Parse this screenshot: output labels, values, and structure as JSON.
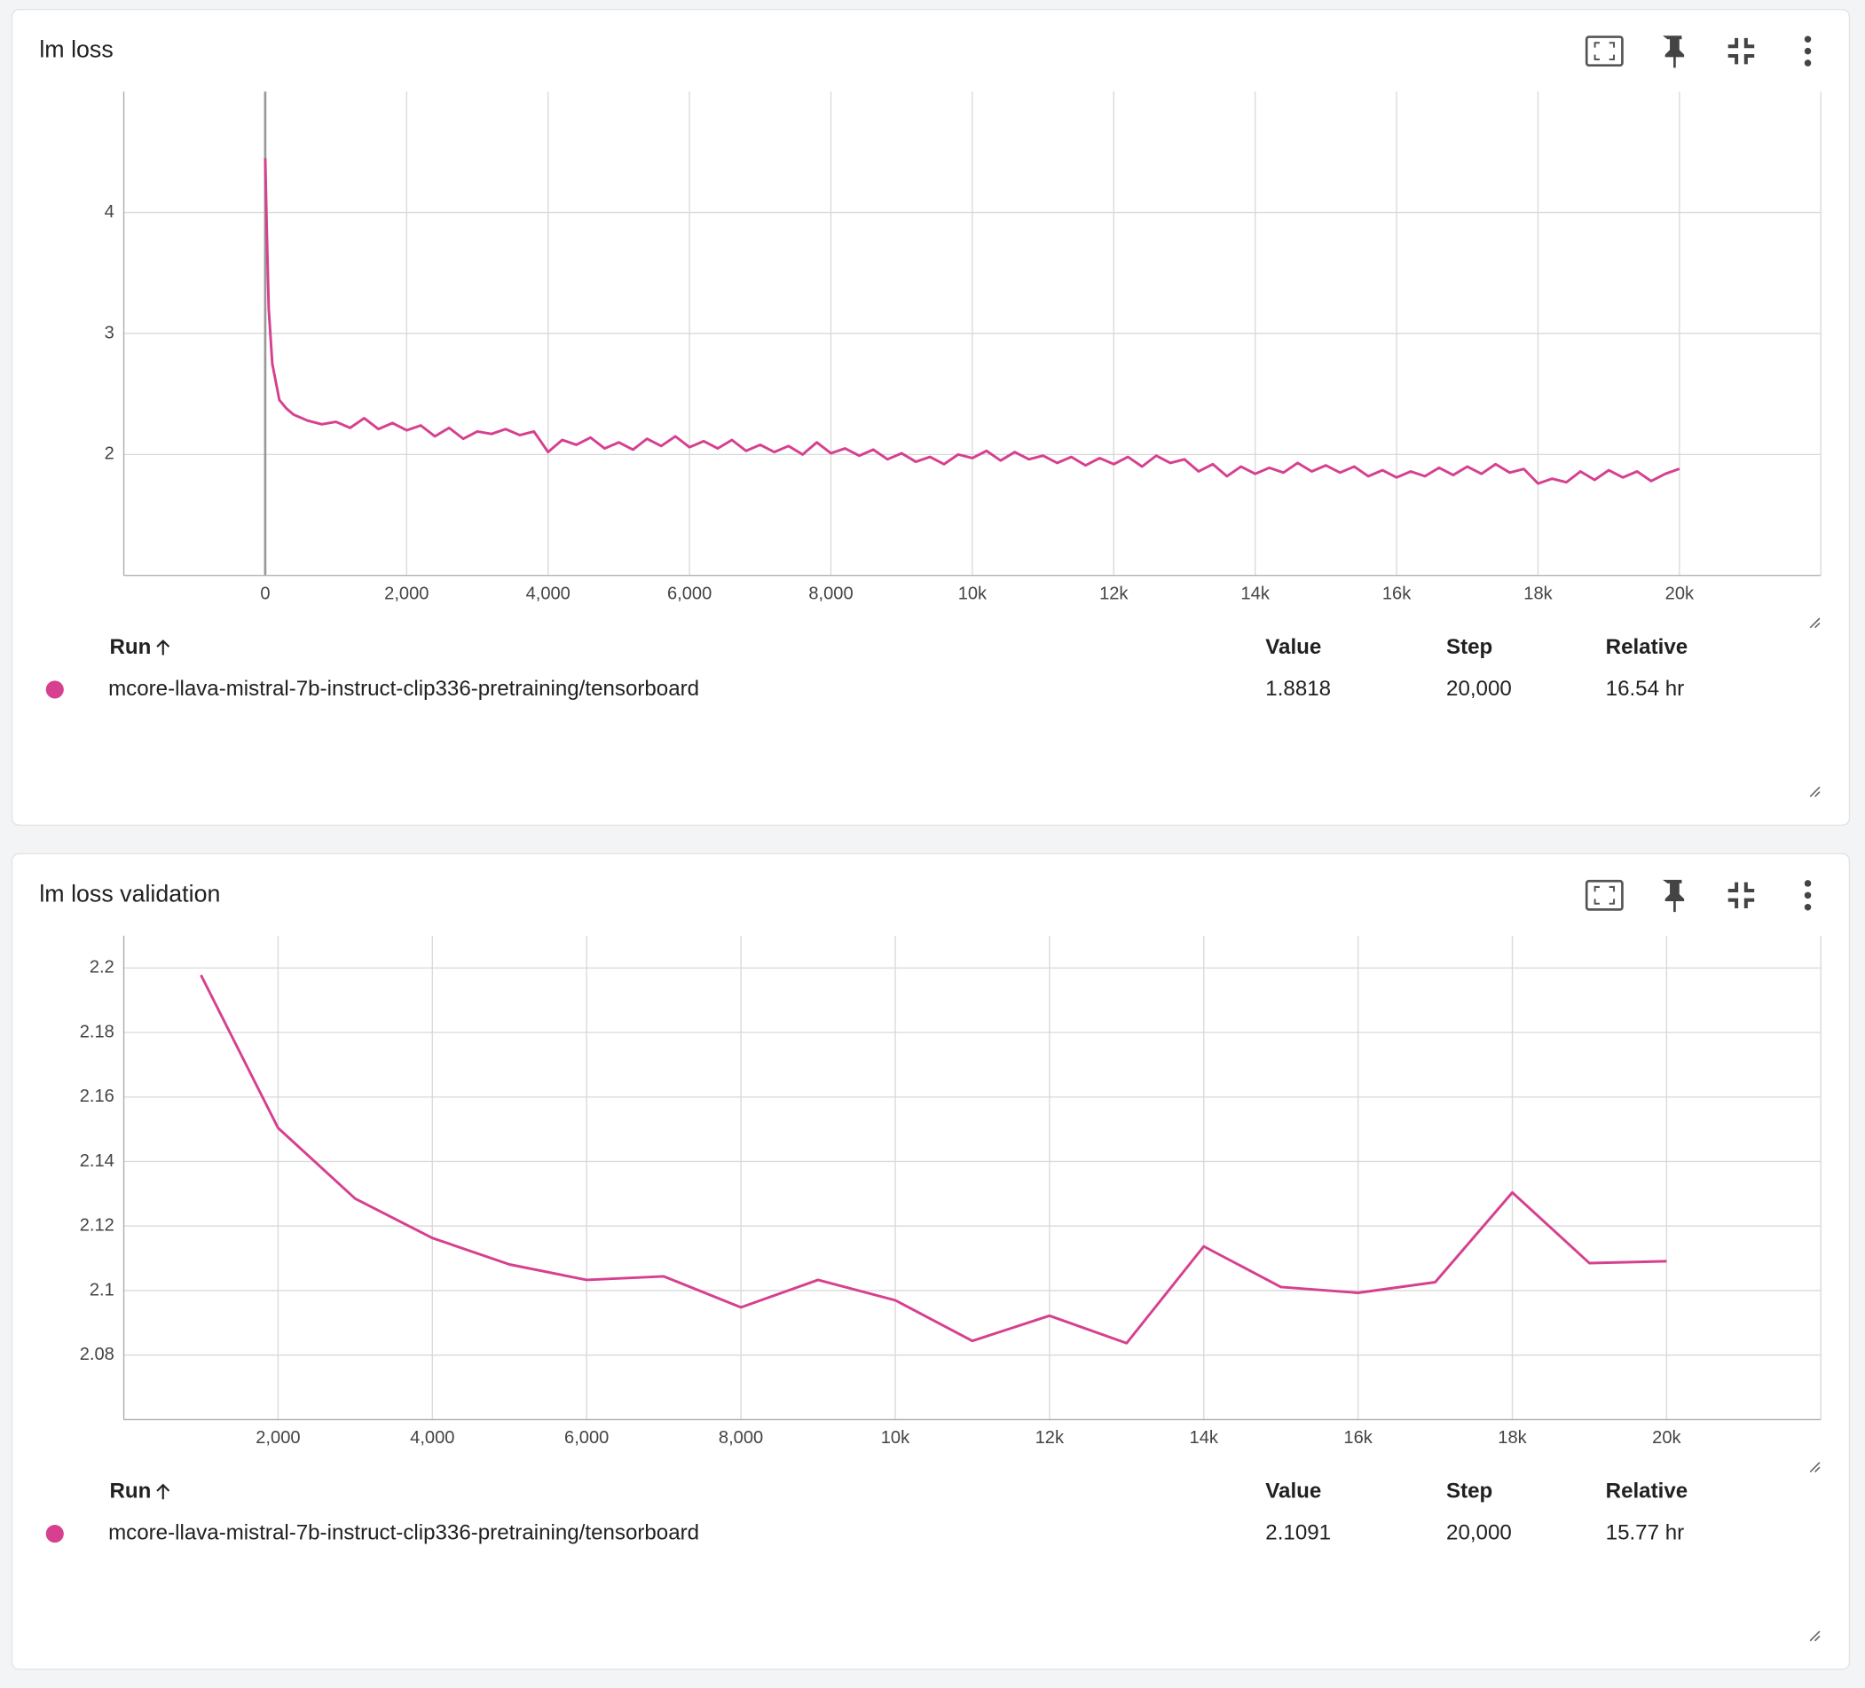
{
  "chart_data": [
    {
      "type": "line",
      "title": "lm loss",
      "x": [
        0,
        20,
        50,
        100,
        200,
        300,
        400,
        600,
        800,
        1000,
        1200,
        1400,
        1600,
        1800,
        2000,
        2200,
        2400,
        2600,
        2800,
        3000,
        3200,
        3400,
        3600,
        3800,
        4000,
        4200,
        4400,
        4600,
        4800,
        5000,
        5200,
        5400,
        5600,
        5800,
        6000,
        6200,
        6400,
        6600,
        6800,
        7000,
        7200,
        7400,
        7600,
        7800,
        8000,
        8200,
        8400,
        8600,
        8800,
        9000,
        9200,
        9400,
        9600,
        9800,
        10000,
        10200,
        10400,
        10600,
        10800,
        11000,
        11200,
        11400,
        11600,
        11800,
        12000,
        12200,
        12400,
        12600,
        12800,
        13000,
        13200,
        13400,
        13600,
        13800,
        14000,
        14200,
        14400,
        14600,
        14800,
        15000,
        15200,
        15400,
        15600,
        15800,
        16000,
        16200,
        16400,
        16600,
        16800,
        17000,
        17200,
        17400,
        17600,
        17800,
        18000,
        18200,
        18400,
        18600,
        18800,
        19000,
        19200,
        19400,
        19600,
        19800,
        20000
      ],
      "series": [
        {
          "color": "#d6408f",
          "values": [
            4.45,
            3.9,
            3.2,
            2.75,
            2.45,
            2.38,
            2.33,
            2.28,
            2.25,
            2.27,
            2.22,
            2.3,
            2.21,
            2.26,
            2.2,
            2.24,
            2.15,
            2.22,
            2.13,
            2.19,
            2.17,
            2.21,
            2.16,
            2.19,
            2.02,
            2.12,
            2.08,
            2.14,
            2.05,
            2.1,
            2.04,
            2.13,
            2.07,
            2.15,
            2.06,
            2.11,
            2.05,
            2.12,
            2.03,
            2.08,
            2.02,
            2.07,
            2.0,
            2.1,
            2.01,
            2.05,
            1.99,
            2.04,
            1.96,
            2.01,
            1.94,
            1.98,
            1.92,
            2.0,
            1.97,
            2.03,
            1.95,
            2.02,
            1.96,
            1.99,
            1.93,
            1.98,
            1.91,
            1.97,
            1.92,
            1.98,
            1.9,
            1.99,
            1.93,
            1.96,
            1.86,
            1.92,
            1.82,
            1.9,
            1.84,
            1.89,
            1.85,
            1.93,
            1.86,
            1.91,
            1.85,
            1.9,
            1.82,
            1.87,
            1.81,
            1.86,
            1.82,
            1.89,
            1.83,
            1.9,
            1.84,
            1.92,
            1.85,
            1.88,
            1.76,
            1.8,
            1.77,
            1.86,
            1.79,
            1.87,
            1.81,
            1.86,
            1.78,
            1.84,
            1.8818
          ]
        }
      ],
      "xlim": [
        -2000,
        22000
      ],
      "ylim": [
        1,
        5
      ],
      "xticks": [
        0,
        {
          "value": 2000,
          "label": "2,000"
        },
        {
          "value": 4000,
          "label": "4,000"
        },
        {
          "value": 6000,
          "label": "6,000"
        },
        {
          "value": 8000,
          "label": "8,000"
        },
        {
          "value": 10000,
          "label": "10k"
        },
        {
          "value": 12000,
          "label": "12k"
        },
        {
          "value": 14000,
          "label": "14k"
        },
        {
          "value": 16000,
          "label": "16k"
        },
        {
          "value": 18000,
          "label": "18k"
        },
        {
          "value": 20000,
          "label": "20k"
        }
      ],
      "yticks": [
        2,
        3,
        4
      ],
      "grid": true
    },
    {
      "type": "line",
      "title": "lm loss validation",
      "x": [
        1000,
        2000,
        3000,
        4000,
        5000,
        6000,
        7000,
        8000,
        9000,
        10000,
        11000,
        12000,
        13000,
        14000,
        15000,
        16000,
        17000,
        18000,
        19000,
        20000
      ],
      "series": [
        {
          "color": "#d6408f",
          "values": [
            2.1978,
            2.1504,
            2.1285,
            2.1163,
            2.1081,
            2.1033,
            2.1044,
            2.0948,
            2.1033,
            2.097,
            2.0844,
            2.0922,
            2.0837,
            2.1137,
            2.1011,
            2.0993,
            2.1026,
            2.1304,
            2.1085,
            2.1091
          ]
        }
      ],
      "xlim": [
        0,
        22000
      ],
      "ylim": [
        2.06,
        2.21
      ],
      "xticks": [
        {
          "value": 2000,
          "label": "2,000"
        },
        {
          "value": 4000,
          "label": "4,000"
        },
        {
          "value": 6000,
          "label": "6,000"
        },
        {
          "value": 8000,
          "label": "8,000"
        },
        {
          "value": 10000,
          "label": "10k"
        },
        {
          "value": 12000,
          "label": "12k"
        },
        {
          "value": 14000,
          "label": "14k"
        },
        {
          "value": 16000,
          "label": "16k"
        },
        {
          "value": 18000,
          "label": "18k"
        },
        {
          "value": 20000,
          "label": "20k"
        }
      ],
      "yticks": [
        2.08,
        2.1,
        2.12,
        2.14,
        2.16,
        2.18,
        2.2
      ],
      "grid": true
    }
  ],
  "tables": [
    {
      "headers": [
        "Run",
        "Value",
        "Step",
        "Relative"
      ],
      "rows": [
        [
          "mcore-llava-mistral-7b-instruct-clip336-pretraining/tensorboard",
          "1.8818",
          "20,000",
          "16.54 hr"
        ]
      ]
    },
    {
      "headers": [
        "Run",
        "Value",
        "Step",
        "Relative"
      ],
      "rows": [
        [
          "mcore-llava-mistral-7b-instruct-clip336-pretraining/tensorboard",
          "2.1091",
          "20,000",
          "15.77 hr"
        ]
      ]
    }
  ]
}
